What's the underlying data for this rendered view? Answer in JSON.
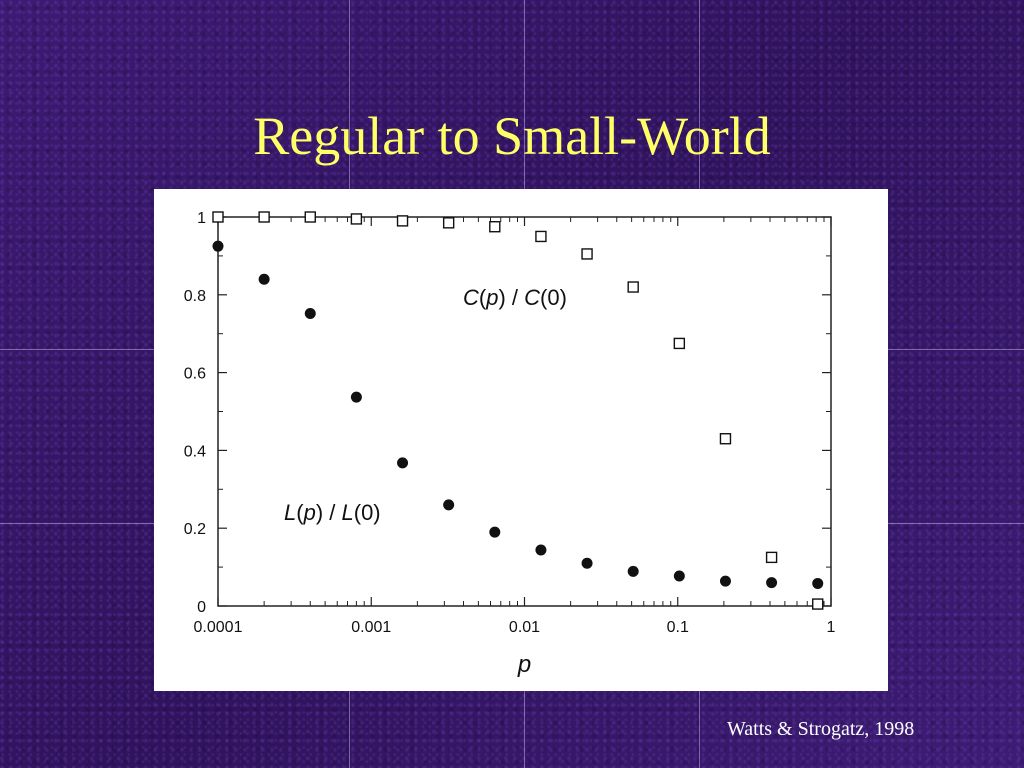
{
  "slide": {
    "title": "Regular to Small-World",
    "citation": "Watts & Strogatz, 1998"
  },
  "chart_data": {
    "type": "scatter",
    "xlabel": "p",
    "x_scale": "log",
    "xlim": [
      0.0001,
      1
    ],
    "ylim": [
      0,
      1
    ],
    "x_ticks": [
      "0.0001",
      "0.001",
      "0.01",
      "0.1",
      "1"
    ],
    "y_ticks": [
      "0",
      "0.2",
      "0.4",
      "0.6",
      "0.8",
      "1"
    ],
    "grid": false,
    "legend": "none",
    "x": [
      0.0001,
      0.0002,
      0.0004,
      0.0008,
      0.0016,
      0.0032,
      0.0064,
      0.0128,
      0.0256,
      0.0512,
      0.1024,
      0.2048,
      0.4096,
      0.8192
    ],
    "series": [
      {
        "label": "C(p) / C(0)",
        "label_parts": [
          "C",
          "(",
          "p",
          ") / ",
          "C",
          "(0)"
        ],
        "marker": "open-square",
        "values": [
          1.0,
          1.0,
          1.0,
          0.995,
          0.99,
          0.985,
          0.975,
          0.95,
          0.905,
          0.82,
          0.675,
          0.43,
          0.125,
          0.005
        ]
      },
      {
        "label": "L(p) / L(0)",
        "label_parts": [
          "L",
          "(",
          "p",
          ") / ",
          "L",
          "(0)"
        ],
        "marker": "filled-circle",
        "values": [
          0.925,
          0.84,
          0.752,
          0.537,
          0.368,
          0.26,
          0.19,
          0.144,
          0.11,
          0.089,
          0.077,
          0.064,
          0.06,
          0.058
        ]
      }
    ]
  }
}
